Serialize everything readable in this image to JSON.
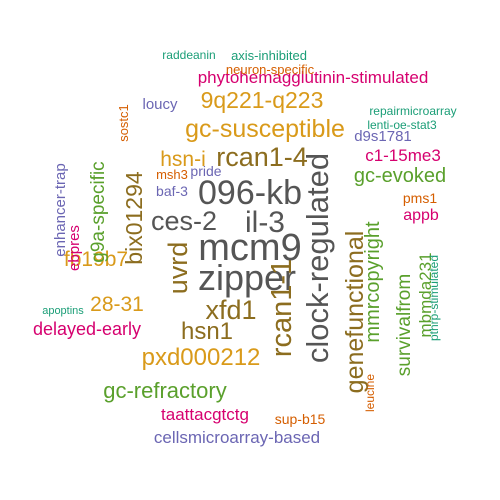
{
  "colors": {
    "gray": "#555555",
    "brown": "#8C6D1F",
    "gold": "#D99A1A",
    "green": "#5AA02C",
    "magenta": "#D6006F",
    "purple": "#6B66B3",
    "orange": "#D55E00",
    "teal": "#1B9E77"
  },
  "words": [
    "096-kb",
    "mcm9",
    "zipper",
    "clock-regulated",
    "il-3",
    "ces-2",
    "rcan1-4",
    "rcan1-1",
    "uvrd",
    "xfd1",
    "bix01294",
    "hsn1",
    "genefunctional",
    "gc-susceptible",
    "9q221-q223",
    "pxd000212",
    "gc-refractory",
    "hsn-i",
    "fb19b7",
    "28-31",
    "mmrcopyright",
    "gc-evoked",
    "g9a-specific",
    "survivalfrom",
    "delayed-early",
    "mbmda231",
    "phytohemagglutinin-stimulated",
    "cellsmicroarray-based",
    "taattacgtctg",
    "c1-15me3",
    "appb",
    "ebpres",
    "enhancer-trap",
    "loucy",
    "d9s1781",
    "pms1",
    "sostc1",
    "pride",
    "msh3",
    "baf-3",
    "neuron-specific",
    "axis-inhibited",
    "raddeanin",
    "repairmicroarray",
    "lenti-oe-stat3",
    "sup-b15",
    "leucine",
    "pthrp-stimulated",
    "apoptins"
  ]
}
